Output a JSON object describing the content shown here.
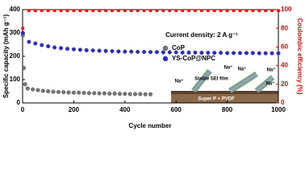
{
  "chart_data": {
    "type": "scatter",
    "xlabel": "Cycle number",
    "ylabel": "Specific capacity (mAh g⁻¹)",
    "y2label": "Coulombic efficiency (%)",
    "xlim": [
      0,
      1000
    ],
    "xticks": [
      0,
      200,
      400,
      600,
      800,
      1000
    ],
    "ylim": [
      0,
      400
    ],
    "yticks": [
      0,
      100,
      200,
      300,
      400
    ],
    "y2lim": [
      0,
      100
    ],
    "y2ticks": [
      0,
      20,
      40,
      60,
      80,
      100
    ],
    "annotation": "Current density: 2 A g⁻¹",
    "inset_labels": [
      "Na⁺",
      "Stable SEI film",
      "Na⁺",
      "Na⁺",
      "Na⁺",
      "Na⁺",
      "Super P + PVDF"
    ],
    "series": [
      {
        "name": "CoP",
        "color": "#777777",
        "x": [
          1,
          5,
          10,
          20,
          40,
          60,
          80,
          100,
          120,
          140,
          160,
          180,
          200,
          220,
          240,
          260,
          280,
          300,
          320,
          340,
          360,
          380,
          400,
          420,
          440,
          460,
          480,
          500
        ],
        "values": [
          290,
          150,
          80,
          62,
          58,
          55,
          52,
          50,
          48,
          47,
          46,
          45,
          44,
          44,
          43,
          42,
          42,
          41,
          41,
          40,
          40,
          39,
          39,
          38,
          38,
          38,
          37,
          37
        ]
      },
      {
        "name": "YS-CoP@NPC",
        "color": "#2b2bd6",
        "x": [
          1,
          25,
          50,
          75,
          100,
          125,
          150,
          175,
          200,
          225,
          250,
          275,
          300,
          325,
          350,
          375,
          400,
          425,
          450,
          475,
          500,
          525,
          550,
          575,
          600,
          625,
          650,
          675,
          700,
          725,
          750,
          775,
          800,
          825,
          850,
          875,
          900,
          925,
          950,
          975,
          1000
        ],
        "values": [
          300,
          262,
          255,
          248,
          243,
          238,
          235,
          232,
          230,
          228,
          226,
          225,
          224,
          223,
          222,
          221,
          220,
          220,
          219,
          219,
          218,
          218,
          217,
          217,
          217,
          216,
          216,
          216,
          215,
          215,
          215,
          215,
          214,
          214,
          214,
          214,
          214,
          213,
          213,
          213,
          213
        ]
      },
      {
        "axis": "y2",
        "color": "#ff0000",
        "x": [
          1,
          25,
          50,
          75,
          100,
          125,
          150,
          175,
          200,
          225,
          250,
          275,
          300,
          325,
          350,
          375,
          400,
          425,
          450,
          475,
          500,
          525,
          550,
          575,
          600,
          625,
          650,
          675,
          700,
          725,
          750,
          775,
          800,
          825,
          850,
          875,
          900,
          925,
          950,
          975,
          1000
        ],
        "values": [
          80,
          99,
          99,
          99,
          99,
          99,
          99,
          99,
          99,
          99,
          99,
          99,
          99,
          99,
          99,
          99,
          99,
          99,
          99,
          99,
          99,
          99,
          99,
          99,
          99,
          99,
          99,
          99,
          99,
          99,
          99,
          99,
          99,
          99,
          99,
          99,
          99,
          99,
          99,
          99,
          99
        ]
      }
    ]
  }
}
